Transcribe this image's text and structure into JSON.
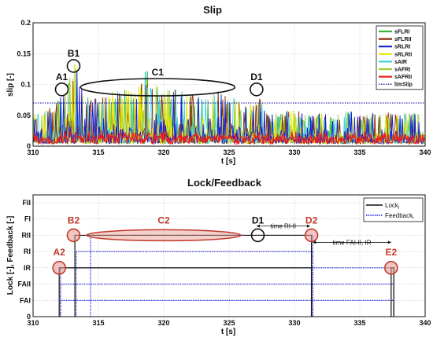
{
  "chart_data": [
    {
      "type": "line",
      "title": "Slip",
      "xlabel": "t [s]",
      "ylabel": "slip [-]",
      "xlim": [
        310,
        340
      ],
      "ylim": [
        0,
        0.2
      ],
      "x_ticks": [
        "310",
        "315",
        "320",
        "325",
        "330",
        "335",
        "340"
      ],
      "y_ticks": [
        "0",
        "0.05",
        "0.1",
        "0.15",
        "0.2"
      ],
      "grid": true,
      "legend_position": "top-right",
      "legend": [
        {
          "name": "sFLRI",
          "color": "#3cb43c",
          "style": "solid"
        },
        {
          "name": "sFLRII",
          "color": "#8b2a0a",
          "style": "solid"
        },
        {
          "name": "sRLRI",
          "color": "#1a1ad8",
          "style": "solid"
        },
        {
          "name": "sRLRII",
          "color": "#e6e600",
          "style": "solid"
        },
        {
          "name": "sAIR",
          "color": "#40d0e0",
          "style": "solid"
        },
        {
          "name": "sAFRI",
          "color": "#9acd32",
          "style": "solid"
        },
        {
          "name": "sAFRII",
          "color": "#e82020",
          "style": "solid"
        },
        {
          "name": "limSlip",
          "color": "#1a1aa8",
          "style": "dotted"
        }
      ],
      "limSlip": 0.07,
      "series_envelope": {
        "description_source": "approximate peak envelope of overlaid slip traces",
        "x": [
          310,
          311,
          312,
          312.5,
          313,
          313.3,
          313.6,
          314,
          315,
          316,
          317,
          318,
          318.7,
          319.3,
          320,
          321,
          322,
          323,
          324,
          325,
          326,
          327,
          327.2,
          328,
          329,
          330,
          331,
          332,
          333,
          334,
          335,
          336,
          337,
          338,
          339,
          340
        ],
        "y": [
          0.05,
          0.06,
          0.075,
          0.1,
          0.13,
          0.14,
          0.1,
          0.08,
          0.08,
          0.09,
          0.095,
          0.1,
          0.125,
          0.1,
          0.09,
          0.095,
          0.085,
          0.08,
          0.09,
          0.085,
          0.07,
          0.065,
          0.085,
          0.05,
          0.055,
          0.06,
          0.05,
          0.055,
          0.05,
          0.06,
          0.05,
          0.055,
          0.06,
          0.05,
          0.055,
          0.05
        ]
      },
      "annotations": [
        {
          "label": "A1",
          "x": 312.2,
          "y": 0.092
        },
        {
          "label": "B1",
          "x": 313.1,
          "y": 0.13
        },
        {
          "label": "C1",
          "x": 320.5,
          "y": 0.093,
          "shape": "ellipse"
        },
        {
          "label": "D1",
          "x": 327.1,
          "y": 0.092
        }
      ]
    },
    {
      "type": "line",
      "title": "Lock/Feedback",
      "xlabel": "t [s]",
      "ylabel": "Lock [-], Feedback [-]",
      "xlim": [
        310,
        340
      ],
      "x_ticks": [
        "310",
        "315",
        "320",
        "325",
        "330",
        "335",
        "340"
      ],
      "y_ticks": [
        "0",
        "FAI",
        "FAII",
        "IR",
        "RI",
        "RII",
        "FI",
        "FII"
      ],
      "grid": true,
      "legend_position": "top-right",
      "legend": [
        {
          "name": "Lock",
          "subscript": "i",
          "color": "#111111",
          "style": "solid"
        },
        {
          "name": "Feedback",
          "subscript": "i",
          "color": "#1a1ad8",
          "style": "dotted"
        }
      ],
      "lock_segments": [
        {
          "start": 312.0,
          "end": 331.3,
          "level": "IR"
        },
        {
          "start": 313.2,
          "end": 331.3,
          "level": "RII"
        },
        {
          "start": 337.4,
          "end": 337.6,
          "level": "IR"
        }
      ],
      "feedback_segments": [
        {
          "start": 312.1,
          "end": 337.6,
          "level": "FAI"
        },
        {
          "start": 312.1,
          "end": 337.6,
          "level": "FAII"
        },
        {
          "start": 312.1,
          "end": 337.6,
          "level": "IR"
        },
        {
          "start": 313.3,
          "end": 331.4,
          "level": "RI"
        },
        {
          "start": 314.4,
          "end": 331.4,
          "level": "RII"
        }
      ],
      "annotations": [
        {
          "label": "A2",
          "color": "red"
        },
        {
          "label": "B2",
          "color": "red"
        },
        {
          "label": "C2",
          "color": "red"
        },
        {
          "label": "D1",
          "color": "black"
        },
        {
          "label": "D2",
          "color": "red"
        },
        {
          "label": "E2",
          "color": "red"
        }
      ],
      "text_notes": [
        {
          "text": "time RI-II"
        },
        {
          "text": "time FAI-II, IR"
        }
      ]
    }
  ]
}
